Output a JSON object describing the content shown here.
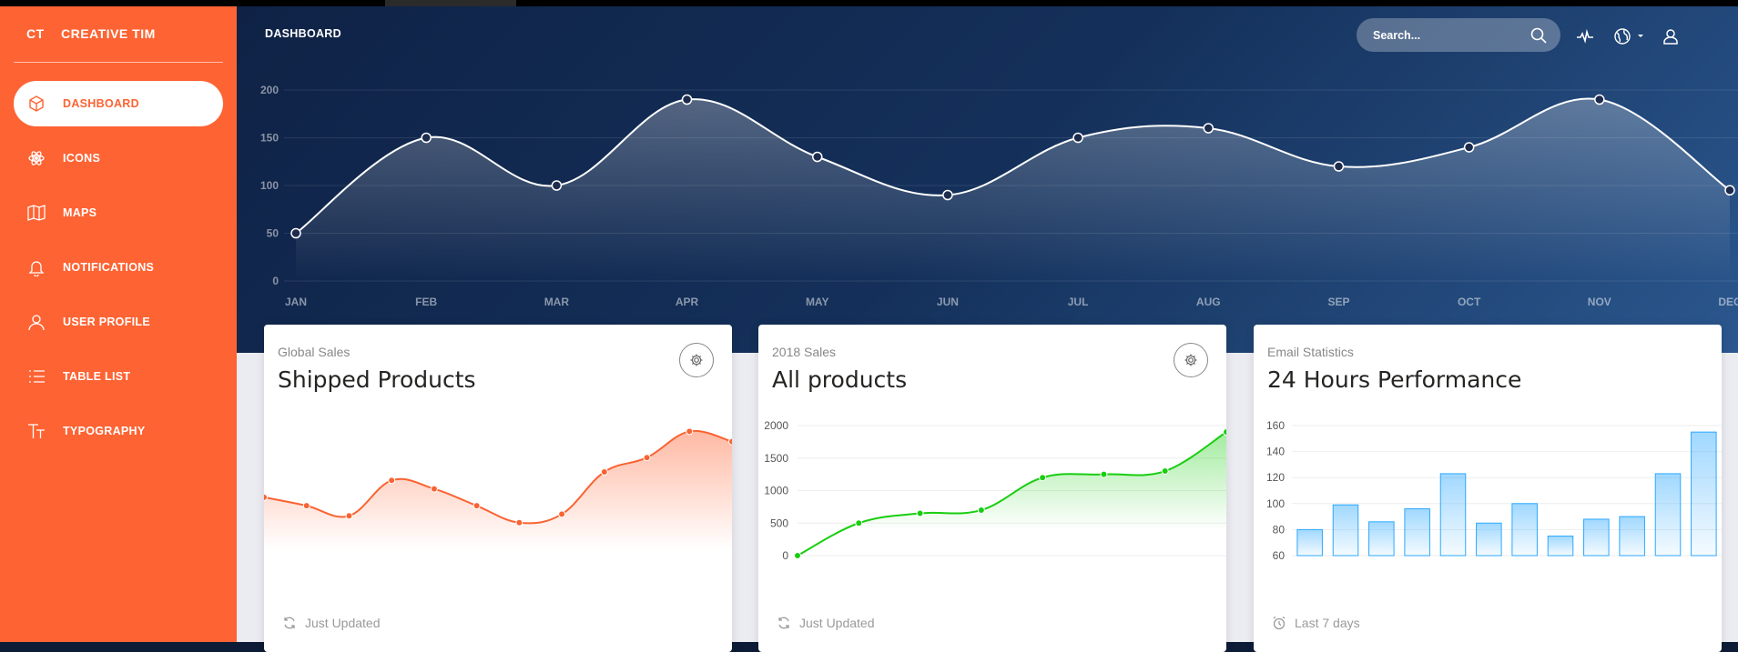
{
  "brand": {
    "mini": "CT",
    "full": "CREATIVE TIM"
  },
  "sidebar": {
    "items": [
      {
        "label": "DASHBOARD",
        "icon": "cube-icon",
        "active": true
      },
      {
        "label": "ICONS",
        "icon": "atom-icon",
        "active": false
      },
      {
        "label": "MAPS",
        "icon": "map-icon",
        "active": false
      },
      {
        "label": "NOTIFICATIONS",
        "icon": "bell-icon",
        "active": false
      },
      {
        "label": "USER PROFILE",
        "icon": "user-icon",
        "active": false
      },
      {
        "label": "TABLE LIST",
        "icon": "list-icon",
        "active": false
      },
      {
        "label": "TYPOGRAPHY",
        "icon": "text-icon",
        "active": false
      }
    ]
  },
  "navbar": {
    "title": "DASHBOARD",
    "search_placeholder": "Search...",
    "icons": [
      "search-icon",
      "pulse-icon",
      "globe-icon",
      "caret-down-icon",
      "user-icon"
    ]
  },
  "colors": {
    "brand_orange": "#fe6333",
    "green": "#18ce0f",
    "blue": "#2ca8ff",
    "navy": "#14305a"
  },
  "chart_data": [
    {
      "type": "area",
      "categories": [
        "JAN",
        "FEB",
        "MAR",
        "APR",
        "MAY",
        "JUN",
        "JUL",
        "AUG",
        "SEP",
        "OCT",
        "NOV",
        "DEC"
      ],
      "values": [
        50,
        150,
        100,
        190,
        130,
        90,
        150,
        160,
        120,
        140,
        190,
        95
      ],
      "yticks": [
        0,
        50,
        100,
        150,
        200
      ],
      "ylim": [
        0,
        200
      ],
      "grid": true
    },
    {
      "type": "area",
      "category": "Global Sales",
      "title": "Shipped Products",
      "values": [
        540,
        440,
        320,
        740,
        640,
        440,
        240,
        340,
        840,
        1010,
        1320,
        1200
      ],
      "footer": "Just Updated"
    },
    {
      "type": "area",
      "category": "2018 Sales",
      "title": "All products",
      "values": [
        0,
        500,
        650,
        700,
        1200,
        1250,
        1300,
        1900
      ],
      "yticks": [
        0,
        500,
        1000,
        1500,
        2000
      ],
      "ylim": [
        0,
        2000
      ],
      "footer": "Just Updated"
    },
    {
      "type": "bar",
      "category": "Email Statistics",
      "title": "24 Hours Performance",
      "values": [
        80,
        99,
        86,
        96,
        123,
        85,
        100,
        75,
        88,
        90,
        123,
        155
      ],
      "yticks": [
        60,
        80,
        100,
        120,
        140,
        160
      ],
      "ylim": [
        60,
        160
      ],
      "footer": "Last 7 days"
    }
  ]
}
